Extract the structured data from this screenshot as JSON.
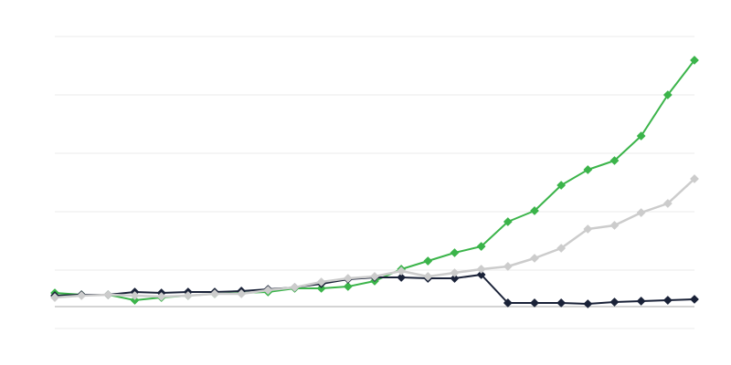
{
  "chart_data": {
    "type": "line",
    "title": "",
    "xlabel": "",
    "ylabel": "",
    "x": [
      1,
      2,
      3,
      4,
      5,
      6,
      7,
      8,
      9,
      10,
      11,
      12,
      13,
      14,
      15,
      16,
      17,
      18,
      19,
      20,
      21,
      22,
      23,
      24,
      25
    ],
    "ylim": [
      -37.5,
      462.5
    ],
    "gridlines": [
      -37.5,
      62.5,
      162.5,
      262.5,
      362.5,
      462.5
    ],
    "baseline": 0,
    "grid": true,
    "legend": "none",
    "marker": "diamond",
    "series": [
      {
        "color": "#3bb44a",
        "values": [
          23.4,
          20.3,
          20.3,
          10.9,
          15.6,
          18.8,
          21.9,
          23.4,
          25,
          31.3,
          31.3,
          34.4,
          43.8,
          64.1,
          78.1,
          92.2,
          103.1,
          145.3,
          164.1,
          207.8,
          234.4,
          250,
          292.2,
          362.5,
          421.9
        ]
      },
      {
        "color": "#1a2238",
        "values": [
          18.8,
          20.3,
          20.3,
          25,
          23.4,
          25,
          25,
          26.6,
          29.7,
          32.8,
          39.1,
          46.9,
          50,
          50,
          48.4,
          48.4,
          54.7,
          6.3,
          6.3,
          6.3,
          4.7,
          7.8,
          9.4,
          10.9,
          12.5
        ]
      },
      {
        "color": "#cccccc",
        "values": [
          15.6,
          18.8,
          20.3,
          18.8,
          17.2,
          18.8,
          21.9,
          21.9,
          28.1,
          32.8,
          42.2,
          48.4,
          51.6,
          60.9,
          51.6,
          57.8,
          64.1,
          68.8,
          82.8,
          100,
          132.8,
          139.1,
          160.9,
          176.6,
          218.8
        ]
      }
    ]
  }
}
